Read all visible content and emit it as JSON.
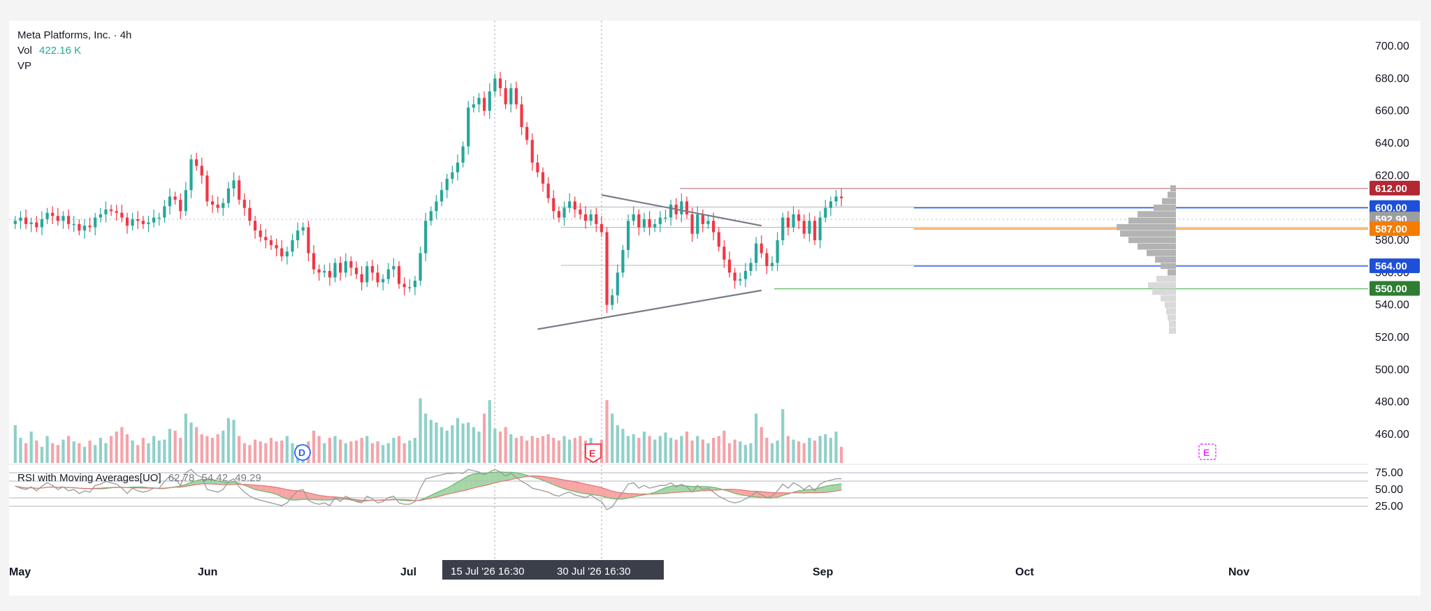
{
  "symbol": {
    "name": "Meta Platforms, Inc.",
    "separator": "·",
    "interval": "4h"
  },
  "volume_legend": {
    "label": "Vol",
    "value": "422.16 K"
  },
  "vp_legend": {
    "label": "VP"
  },
  "rsi_legend": {
    "label": "RSI with Moving Averages[UO]",
    "v1": "62.78",
    "v2": "54.42",
    "v3": "49.29"
  },
  "event_markers": [
    {
      "letter": "D",
      "kind": "dividend",
      "color": "#2962ff"
    },
    {
      "letter": "E",
      "kind": "earnings",
      "color": "#f23645"
    },
    {
      "letter": "E",
      "kind": "earnings-upcoming",
      "color": "#e040fb"
    }
  ],
  "crosshair_labels": [
    "15 Jul '26   16:30",
    "30 Jul '26   16:30"
  ],
  "colors": {
    "up": "#26a69a",
    "down": "#f23645",
    "volume_up": "#8fd0c9",
    "volume_down": "#f5a3a9",
    "rsi_line": "#888888",
    "rsi_fill_up": "#a5d6a7",
    "rsi_fill_down": "#f8a5a5"
  },
  "chart_data": {
    "type": "candlestick",
    "x_axis_labels": [
      "May",
      "Jun",
      "Jul",
      "Sep",
      "Oct",
      "Nov"
    ],
    "price_axis": {
      "ticks": [
        "700.00",
        "680.00",
        "660.00",
        "640.00",
        "620.00",
        "600.00",
        "580.00",
        "560.00",
        "540.00",
        "520.00",
        "500.00",
        "480.00",
        "460.00"
      ],
      "range": [
        455,
        710
      ]
    },
    "price_tags": [
      {
        "value": 612.0,
        "label": "612.00",
        "color": "#b22833"
      },
      {
        "value": 600.0,
        "label": "600.00",
        "color": "#1e4fd8"
      },
      {
        "value": 592.9,
        "label": "592.90",
        "color": "#9e9e9e"
      },
      {
        "value": 587.0,
        "label": "587.00",
        "color": "#f57c00"
      },
      {
        "value": 564.0,
        "label": "564.00",
        "color": "#1e4fd8"
      },
      {
        "value": 550.0,
        "label": "550.00",
        "color": "#2e7d32"
      }
    ],
    "rsi_axis": {
      "ticks": [
        "75.00",
        "50.00",
        "25.00"
      ],
      "range": [
        20,
        80
      ]
    },
    "candles_close": [
      592,
      594,
      590,
      591,
      588,
      593,
      597,
      595,
      592,
      595,
      590,
      590,
      586,
      589,
      588,
      594,
      596,
      599,
      598,
      597,
      594,
      589,
      593,
      592,
      590,
      591,
      594,
      594,
      601,
      607,
      605,
      598,
      611,
      630,
      626,
      620,
      604,
      602,
      600,
      603,
      612,
      617,
      605,
      600,
      592,
      586,
      582,
      580,
      577,
      575,
      570,
      573,
      580,
      586,
      588,
      572,
      562,
      560,
      561,
      557,
      566,
      560,
      567,
      563,
      559,
      554,
      564,
      560,
      554,
      556,
      562,
      564,
      553,
      551,
      551,
      555,
      572,
      592,
      598,
      604,
      611,
      618,
      622,
      628,
      638,
      662,
      664,
      668,
      660,
      672,
      680,
      674,
      664,
      674,
      664,
      650,
      642,
      628,
      622,
      615,
      606,
      598,
      594,
      600,
      604,
      599,
      596,
      592,
      596,
      590,
      585,
      540,
      546,
      560,
      574,
      592,
      596,
      588,
      593,
      588,
      590,
      594,
      594,
      602,
      596,
      604,
      596,
      584,
      596,
      590,
      592,
      585,
      576,
      568,
      560,
      555,
      556,
      561,
      566,
      578,
      572,
      564,
      566,
      580,
      594,
      588,
      596,
      592,
      584,
      592,
      580,
      594,
      600,
      604,
      607,
      606
    ],
    "volume_series": [
      42,
      28,
      22,
      35,
      25,
      18,
      30,
      22,
      20,
      26,
      30,
      24,
      22,
      18,
      25,
      20,
      28,
      22,
      30,
      35,
      40,
      32,
      25,
      20,
      28,
      22,
      30,
      25,
      26,
      38,
      36,
      28,
      55,
      45,
      40,
      32,
      30,
      28,
      32,
      36,
      50,
      48,
      30,
      22,
      20,
      26,
      24,
      22,
      28,
      24,
      25,
      30,
      22,
      20,
      18,
      24,
      36,
      30,
      22,
      28,
      30,
      26,
      22,
      24,
      25,
      28,
      30,
      22,
      24,
      20,
      22,
      28,
      30,
      22,
      25,
      28,
      72,
      55,
      48,
      45,
      40,
      36,
      42,
      50,
      44,
      45,
      40,
      35,
      55,
      70,
      38,
      35,
      40,
      32,
      28,
      30,
      25,
      30,
      28,
      30,
      32,
      28,
      25,
      30,
      26,
      28,
      30,
      25,
      28,
      22,
      26,
      70,
      55,
      42,
      38,
      30,
      32,
      28,
      35,
      30,
      26,
      30,
      34,
      28,
      26,
      30,
      35,
      25,
      30,
      26,
      22,
      28,
      30,
      36,
      22,
      26,
      24,
      20,
      22,
      55,
      40,
      28,
      22,
      25,
      60,
      30,
      26,
      24,
      22,
      28,
      25,
      30,
      32,
      28,
      35,
      18
    ],
    "rsi_series": [
      55,
      52,
      50,
      54,
      48,
      55,
      60,
      56,
      50,
      54,
      48,
      50,
      44,
      48,
      46,
      56,
      58,
      62,
      60,
      58,
      52,
      44,
      52,
      48,
      46,
      48,
      52,
      52,
      62,
      70,
      66,
      56,
      75,
      80,
      72,
      68,
      50,
      48,
      46,
      50,
      62,
      66,
      54,
      46,
      40,
      36,
      34,
      32,
      30,
      28,
      26,
      30,
      40,
      48,
      50,
      34,
      30,
      28,
      30,
      26,
      38,
      32,
      40,
      36,
      32,
      30,
      40,
      36,
      30,
      32,
      38,
      40,
      30,
      28,
      28,
      32,
      52,
      66,
      68,
      70,
      72,
      74,
      74,
      75,
      74,
      80,
      78,
      76,
      72,
      76,
      80,
      76,
      70,
      74,
      68,
      62,
      58,
      52,
      50,
      48,
      46,
      42,
      40,
      44,
      46,
      42,
      40,
      38,
      42,
      36,
      32,
      20,
      24,
      36,
      46,
      58,
      60,
      52,
      56,
      52,
      54,
      56,
      56,
      60,
      54,
      58,
      54,
      46,
      56,
      50,
      52,
      46,
      40,
      36,
      32,
      30,
      32,
      36,
      40,
      46,
      42,
      38,
      40,
      48,
      58,
      52,
      60,
      56,
      50,
      56,
      48,
      58,
      62,
      64,
      66,
      66
    ],
    "volume_profile_bins": [
      {
        "low": 610,
        "high": 614,
        "value": 8
      },
      {
        "low": 606,
        "high": 610,
        "value": 12
      },
      {
        "low": 602,
        "high": 606,
        "value": 20
      },
      {
        "low": 598,
        "high": 602,
        "value": 32
      },
      {
        "low": 594,
        "high": 598,
        "value": 55
      },
      {
        "low": 590,
        "high": 594,
        "value": 68
      },
      {
        "low": 586,
        "high": 590,
        "value": 85
      },
      {
        "low": 582,
        "high": 586,
        "value": 80
      },
      {
        "low": 578,
        "high": 582,
        "value": 68
      },
      {
        "low": 574,
        "high": 578,
        "value": 55
      },
      {
        "low": 570,
        "high": 574,
        "value": 42
      },
      {
        "low": 566,
        "high": 570,
        "value": 30
      },
      {
        "low": 562,
        "high": 566,
        "value": 22
      },
      {
        "low": 558,
        "high": 562,
        "value": 12
      },
      {
        "low": 554,
        "high": 558,
        "value": 28
      },
      {
        "low": 550,
        "high": 554,
        "value": 40
      },
      {
        "low": 546,
        "high": 550,
        "value": 34
      },
      {
        "low": 542,
        "high": 546,
        "value": 22
      },
      {
        "low": 538,
        "high": 542,
        "value": 16
      },
      {
        "low": 534,
        "high": 538,
        "value": 14
      },
      {
        "low": 530,
        "high": 534,
        "value": 12
      },
      {
        "low": 526,
        "high": 530,
        "value": 10
      },
      {
        "low": 522,
        "high": 526,
        "value": 10
      }
    ],
    "trendlines": [
      {
        "name": "upper",
        "from": {
          "bar": 110,
          "price": 608
        },
        "to": {
          "bar": 140,
          "price": 589
        }
      },
      {
        "name": "lower",
        "from": {
          "bar": 98,
          "price": 525
        },
        "to": {
          "bar": 140,
          "price": 549
        }
      }
    ]
  }
}
